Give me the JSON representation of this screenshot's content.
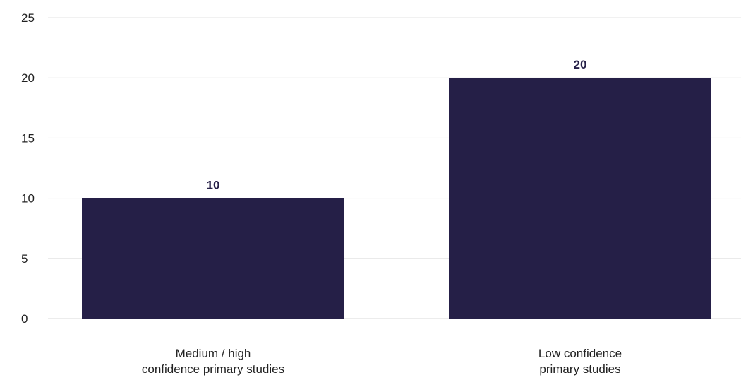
{
  "chart_data": {
    "type": "bar",
    "categories": [
      [
        "Medium / high",
        "confidence primary studies"
      ],
      [
        "Low confidence",
        "primary studies"
      ]
    ],
    "values": [
      10,
      20
    ],
    "data_labels": [
      "10",
      "20"
    ],
    "y_ticks": [
      "0",
      "5",
      "10",
      "15",
      "20",
      "25"
    ],
    "ylim": [
      0,
      25
    ],
    "grid": true,
    "bar_color": "#251f47",
    "label_color": "#251f47"
  }
}
